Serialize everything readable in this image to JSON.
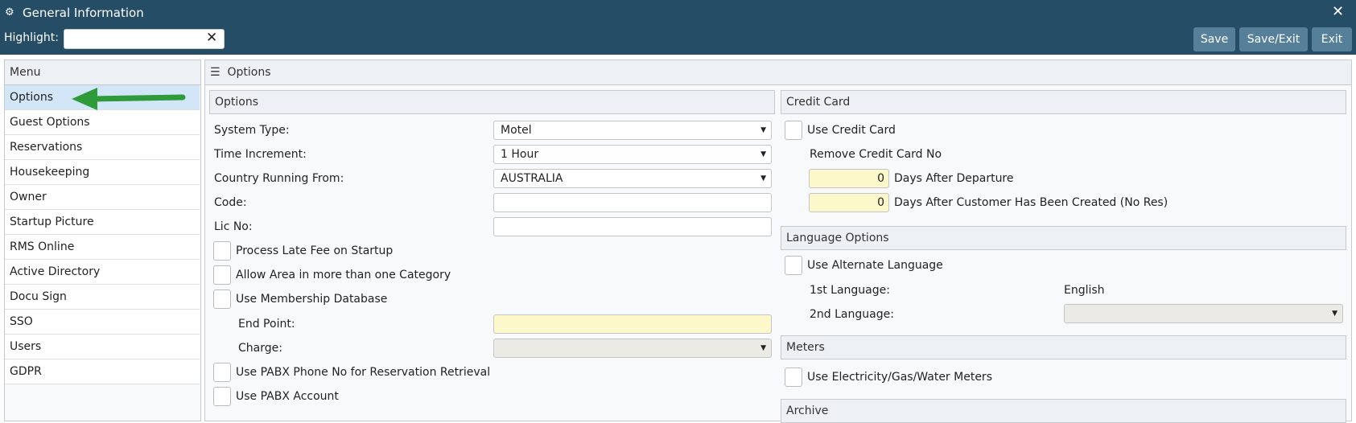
{
  "window": {
    "title": "General Information",
    "close_icon": "close-icon",
    "app_icon": "gears-icon"
  },
  "toolbar": {
    "highlight_label": "Highlight:",
    "highlight_value": "",
    "save": "Save",
    "save_exit": "Save/Exit",
    "exit": "Exit"
  },
  "menu": {
    "title": "Menu",
    "selected": "Options",
    "items": [
      "Options",
      "Guest Options",
      "Reservations",
      "Housekeeping",
      "Owner",
      "Startup Picture",
      "RMS Online",
      "Active Directory",
      "Docu Sign",
      "SSO",
      "Users",
      "GDPR"
    ]
  },
  "main": {
    "title": "Options"
  },
  "options": {
    "title": "Options",
    "system_type_label": "System Type:",
    "system_type": "Motel",
    "time_increment_label": "Time Increment:",
    "time_increment": "1 Hour",
    "country_label": "Country Running From:",
    "country": "AUSTRALIA",
    "code_label": "Code:",
    "code": "",
    "lic_label": "Lic No:",
    "lic": "",
    "late_fee": "Process Late Fee on Startup",
    "allow_area": "Allow Area in more than one Category",
    "membership": "Use Membership Database",
    "end_point_label": "End Point:",
    "end_point": "",
    "charge_label": "Charge:",
    "charge": "",
    "pabx_phone": "Use PABX Phone No for Reservation Retrieval",
    "pabx_account": "Use PABX Account"
  },
  "credit_card": {
    "title": "Credit Card",
    "use": "Use Credit Card",
    "remove_label": "Remove Credit Card No",
    "days_departure": "0",
    "days_departure_label": "Days After Departure",
    "days_created": "0",
    "days_created_label": "Days After Customer Has Been Created (No Res)"
  },
  "language": {
    "title": "Language Options",
    "use_alt": "Use Alternate Language",
    "first_label": "1st Language:",
    "first": "English",
    "second_label": "2nd Language:",
    "second": ""
  },
  "meters": {
    "title": "Meters",
    "use": "Use Electricity/Gas/Water Meters"
  },
  "archive": {
    "title": "Archive"
  },
  "colors": {
    "header": "#254d66",
    "button": "#567f99",
    "selected": "#d3e6f8",
    "required_field": "#fdf8cc",
    "arrow": "#2e9a3a"
  }
}
